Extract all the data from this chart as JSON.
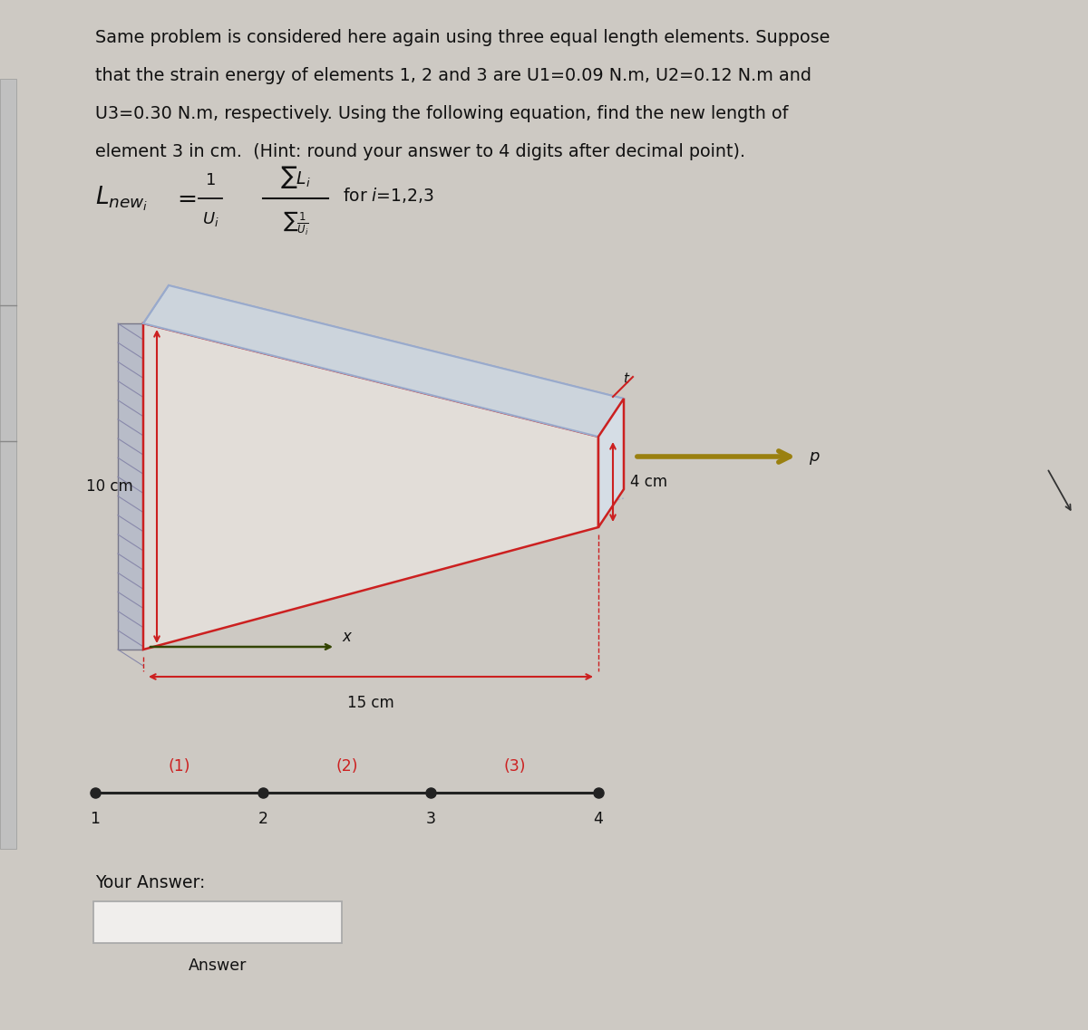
{
  "background_color": "#cdc9c3",
  "text_color": "#111111",
  "title_lines": [
    "Same problem is considered here again using three equal length elements. Suppose",
    "that the strain energy of elements 1, 2 and 3 are U1=0.09 N.m, U2=0.12 N.m and",
    "U3=0.30 N.m, respectively. Using the following equation, find the new length of",
    "element 3 in cm.  (Hint: round your answer to 4 digits after decimal point)."
  ],
  "formula_for": "for i=1,2,3",
  "dim_10cm": "10 cm",
  "dim_15cm": "15 cm",
  "dim_4cm": "4 cm",
  "label_p": "p",
  "label_x": "x",
  "label_t": "t",
  "node_labels": [
    "1",
    "2",
    "3",
    "4"
  ],
  "element_labels": [
    "(1)",
    "(2)",
    "(3)"
  ],
  "your_answer_text": "Your Answer:",
  "answer_text": "Answer",
  "red_color": "#cc2020",
  "light_blue_color": "#99aacc",
  "gray_wall_color": "#b8bcc8",
  "olive_arrow": "#9a8010",
  "line_color": "#222222",
  "wall_hatch_color": "#8888aa",
  "front_face_color": "#e2ddd8",
  "top_face_color": "#ccd4dc",
  "right_face_color": "#d5dde5",
  "left_bracket_color": "#bbbbbb"
}
